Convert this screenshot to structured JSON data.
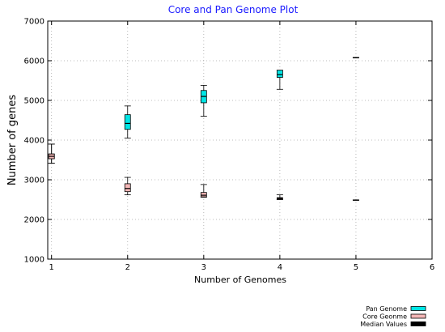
{
  "colors": {
    "title": "#1a1aff",
    "pan": "#00e5e5",
    "core": "#f4b7b7",
    "median": "#000000",
    "grid": "#a8a8a8",
    "border": "#000000"
  },
  "chart_data": {
    "type": "box",
    "title": "Core and Pan Genome Plot",
    "xlabel": "Number of Genomes",
    "ylabel": "Number of genes",
    "xlim": [
      0.95,
      6
    ],
    "ylim": [
      1000,
      7000
    ],
    "xticks": [
      1,
      2,
      3,
      4,
      5,
      6
    ],
    "yticks": [
      1000,
      2000,
      3000,
      4000,
      5000,
      6000,
      7000
    ],
    "grid": true,
    "legend_position": "bottom-right",
    "series": [
      {
        "name": "Pan Genome",
        "color_key": "pan",
        "boxes": [
          {
            "x": 1,
            "min": 3420,
            "q1": 3530,
            "median": 3590,
            "q3": 3650,
            "max": 3900
          },
          {
            "x": 2,
            "min": 4050,
            "q1": 4270,
            "median": 4420,
            "q3": 4640,
            "max": 4860
          },
          {
            "x": 3,
            "min": 4600,
            "q1": 4940,
            "median": 5100,
            "q3": 5250,
            "max": 5380
          },
          {
            "x": 4,
            "min": 5280,
            "q1": 5580,
            "median": 5650,
            "q3": 5760,
            "max": 5760
          },
          {
            "x": 5,
            "min": 6080,
            "q1": 6080,
            "median": 6080,
            "q3": 6080,
            "max": 6080
          }
        ]
      },
      {
        "name": "Core Geonme",
        "color_key": "core",
        "boxes": [
          {
            "x": 1,
            "min": 3420,
            "q1": 3530,
            "median": 3590,
            "q3": 3650,
            "max": 3900
          },
          {
            "x": 2,
            "min": 2620,
            "q1": 2700,
            "median": 2780,
            "q3": 2900,
            "max": 3060
          },
          {
            "x": 3,
            "min": 2560,
            "q1": 2570,
            "median": 2610,
            "q3": 2680,
            "max": 2880
          },
          {
            "x": 4,
            "min": 2500,
            "q1": 2510,
            "median": 2530,
            "q3": 2550,
            "max": 2620
          },
          {
            "x": 5,
            "min": 2490,
            "q1": 2490,
            "median": 2490,
            "q3": 2490,
            "max": 2490
          }
        ]
      }
    ],
    "legend": [
      {
        "label": "Pan Genome",
        "color_key": "pan"
      },
      {
        "label": "Core Geonme",
        "color_key": "core"
      },
      {
        "label": "Median Values",
        "color_key": "median"
      }
    ]
  }
}
